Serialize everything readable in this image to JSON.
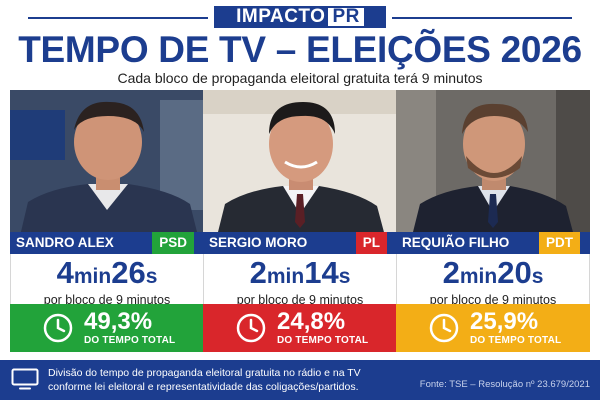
{
  "brand": {
    "name": "IMPACTO",
    "suffix": "PR"
  },
  "title": "TEMPO DE TV – ELEIÇÕES 2026",
  "subtitle": "Cada bloco de propaganda eleitoral gratuita terá 9 minutos",
  "candidates": [
    {
      "name": "SANDRO ALEX",
      "party": "PSD",
      "party_color": "#22a33a",
      "time_min": "4",
      "time_min_unit": "min",
      "time_sec": "26",
      "time_sec_unit": "s",
      "per_block": "por bloco de 9 minutos",
      "share": "49,3%",
      "share_fraction": 0.493,
      "share_label": "DO TEMPO TOTAL",
      "share_color": "#22a33a",
      "photo_icon": "candidate-portrait"
    },
    {
      "name": "SERGIO MORO",
      "party": "PL",
      "party_color": "#d9262b",
      "time_min": "2",
      "time_min_unit": "min",
      "time_sec": "14",
      "time_sec_unit": "s",
      "per_block": "por bloco de 9 minutos",
      "share": "24,8%",
      "share_fraction": 0.248,
      "share_label": "DO TEMPO TOTAL",
      "share_color": "#d9262b",
      "photo_icon": "candidate-portrait"
    },
    {
      "name": "REQUIÃO FILHO",
      "party": "PDT",
      "party_color": "#f3ae16",
      "time_min": "2",
      "time_min_unit": "min",
      "time_sec": "20",
      "time_sec_unit": "s",
      "per_block": "por bloco de 9 minutos",
      "share": "25,9%",
      "share_fraction": 0.259,
      "share_label": "DO TEMPO TOTAL",
      "share_color": "#f3ae16",
      "photo_icon": "candidate-portrait"
    }
  ],
  "footer": {
    "icon": "tv-icon",
    "description": "Divisão do tempo de propaganda eleitoral gratuita no rádio e na TV conforme lei eleitoral e representatividade das coligações/partidos.",
    "source": "Fonte: TSE – Resolução nº 23.679/2021"
  },
  "colors": {
    "primary": "#1c3d8f",
    "text": "#222222",
    "background": "#ffffff"
  }
}
